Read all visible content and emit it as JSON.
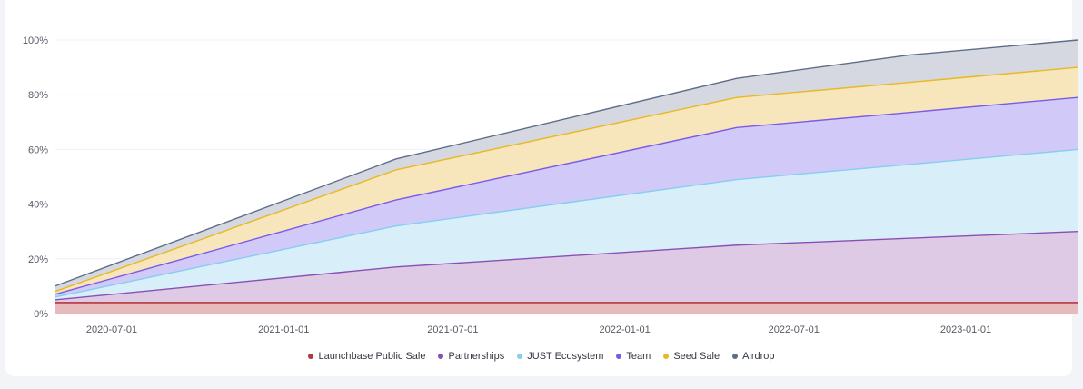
{
  "chart_data": {
    "type": "area",
    "stacked": true,
    "x_dates": [
      "2020-05-01",
      "2021-05-01",
      "2022-05-01",
      "2022-11-01",
      "2023-05-01"
    ],
    "x_ticks": [
      "2020-07-01",
      "2021-01-01",
      "2021-07-01",
      "2022-01-01",
      "2022-07-01",
      "2023-01-01"
    ],
    "y_ticks": [
      "0%",
      "20%",
      "40%",
      "60%",
      "80%",
      "100%"
    ],
    "ylim": [
      0,
      100
    ],
    "grid": true,
    "legend_position": "bottom",
    "series": [
      {
        "name": "Launchbase Public Sale",
        "color": "#b5373c",
        "fill": "#e6b7b8",
        "values": [
          4,
          4,
          4,
          4,
          4
        ]
      },
      {
        "name": "Partnerships",
        "color": "#8a4fb5",
        "fill": "#dcc7e3",
        "values": [
          1,
          13,
          21,
          23.5,
          26
        ]
      },
      {
        "name": "JUST Ecosystem",
        "color": "#86cdf0",
        "fill": "#d6eefa",
        "values": [
          1,
          15,
          24,
          27,
          30
        ]
      },
      {
        "name": "Team",
        "color": "#7b5ae6",
        "fill": "#cfc7f9",
        "values": [
          1,
          9.5,
          19,
          19,
          19
        ]
      },
      {
        "name": "Seed Sale",
        "color": "#e8b923",
        "fill": "#f7e4b7",
        "values": [
          1,
          11,
          11,
          11,
          11
        ]
      },
      {
        "name": "Airdrop",
        "color": "#5f6e87",
        "fill": "#d3d6de",
        "values": [
          2,
          4,
          7,
          10,
          10
        ]
      }
    ]
  }
}
